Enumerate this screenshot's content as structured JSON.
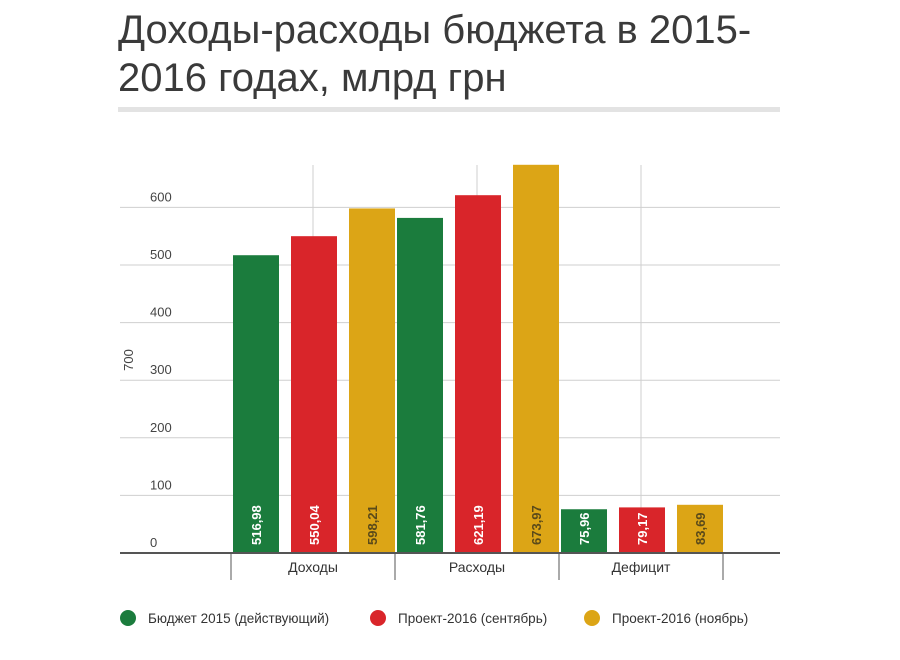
{
  "title": "Доходы-расходы бюджета в 2015-2016 годах, млрд грн",
  "colors": {
    "green": "#1b7c3d",
    "red": "#d9252a",
    "yellow": "#dca516",
    "grid": "#cfcfcf",
    "axis": "#555555"
  },
  "chart_data": {
    "type": "bar",
    "title": "Доходы-расходы бюджета в 2015-2016 годах, млрд грн",
    "categories": [
      "Доходы",
      "Расходы",
      "Дефицит"
    ],
    "series": [
      {
        "name": "Бюджет 2015 (действующий)",
        "color": "#1b7c3d",
        "values": [
          516.98,
          581.76,
          75.96
        ],
        "labels": [
          "516,98",
          "581,76",
          "75,96"
        ]
      },
      {
        "name": "Проект-2016 (сентябрь)",
        "color": "#d9252a",
        "values": [
          550.04,
          621.19,
          79.17
        ],
        "labels": [
          "550,04",
          "621,19",
          "79,17"
        ]
      },
      {
        "name": "Проект-2016 (ноябрь)",
        "color": "#dca516",
        "values": [
          598.21,
          673.97,
          83.69
        ],
        "labels": [
          "598,21",
          "673,97",
          "83,69"
        ]
      }
    ],
    "yticks": [
      0,
      100,
      200,
      300,
      400,
      500,
      600
    ],
    "ylabel": "700",
    "ylim": [
      0,
      700
    ],
    "grid": true,
    "legend": "bottom"
  }
}
